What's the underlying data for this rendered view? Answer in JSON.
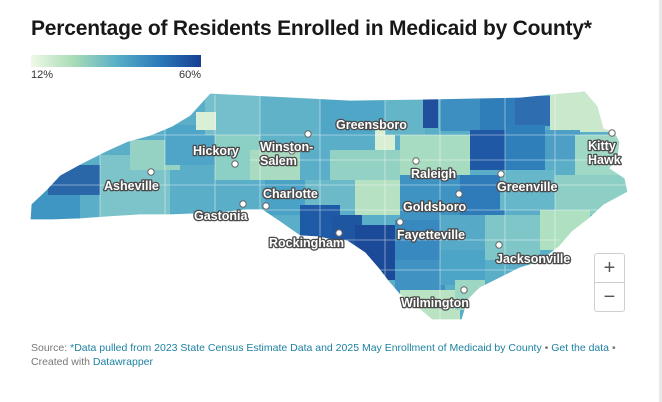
{
  "title": "Percentage of Residents Enrolled in Medicaid by County*",
  "legend": {
    "min_label": "12%",
    "max_label": "60%",
    "colors": [
      "#f0f9e8",
      "#a8dcb5",
      "#5ab0c8",
      "#2b7bb9",
      "#173f93"
    ]
  },
  "map": {
    "fill_low": "#bfe3c2",
    "fill_mid": "#4aa3c4",
    "fill_high": "#1e4f9c",
    "cities": [
      {
        "name": "Greensboro"
      },
      {
        "name": "Hickory"
      },
      {
        "name": "Winston-\nSalem"
      },
      {
        "name": "Raleigh"
      },
      {
        "name": "Kitty\nHawk"
      },
      {
        "name": "Asheville"
      },
      {
        "name": "Greenville"
      },
      {
        "name": "Charlotte"
      },
      {
        "name": "Goldsboro"
      },
      {
        "name": "Gastonia"
      },
      {
        "name": "Fayetteville"
      },
      {
        "name": "Rockingham"
      },
      {
        "name": "Jacksonville"
      },
      {
        "name": "Wilmington"
      }
    ]
  },
  "zoom": {
    "in_label": "+",
    "out_label": "−"
  },
  "footer": {
    "source_prefix": "Source:",
    "source_link": "*Data pulled from 2023 State Census Estimate Data and 2025 May Enrollment of Medicaid by County",
    "sep1": "•",
    "get_data": "Get the data",
    "sep2": "•",
    "created_with": "Created with",
    "tool": "Datawrapper"
  }
}
